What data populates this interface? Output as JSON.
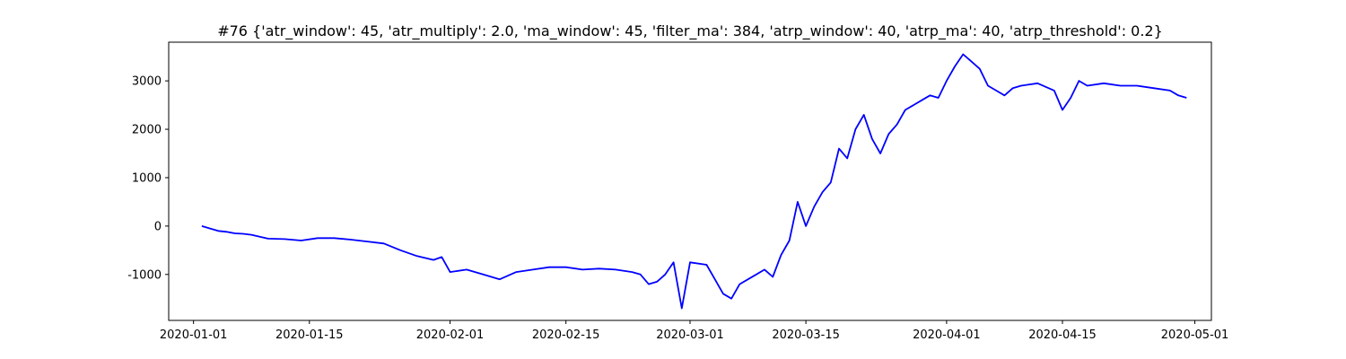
{
  "chart_data": {
    "type": "line",
    "title": "#76 {'atr_window': 45, 'atr_multiply': 2.0, 'ma_window': 45, 'filter_ma': 384, 'atrp_window': 40, 'atrp_ma': 40, 'atrp_threshold': 0.2}",
    "xlabel": "",
    "ylabel": "",
    "x_axis_type": "date",
    "xlim": [
      "2019-12-29",
      "2020-05-03"
    ],
    "ylim": [
      -1950,
      3800
    ],
    "x_ticks": [
      "2020-01-01",
      "2020-01-15",
      "2020-02-01",
      "2020-02-15",
      "2020-03-01",
      "2020-03-15",
      "2020-04-01",
      "2020-04-15",
      "2020-05-01"
    ],
    "y_ticks": [
      -1000,
      0,
      1000,
      2000,
      3000
    ],
    "grid": false,
    "color": "#0000ff",
    "series": [
      {
        "x": [
          "2020-01-02",
          "2020-01-03",
          "2020-01-04",
          "2020-01-05",
          "2020-01-06",
          "2020-01-07",
          "2020-01-08",
          "2020-01-09",
          "2020-01-10",
          "2020-01-12",
          "2020-01-14",
          "2020-01-16",
          "2020-01-18",
          "2020-01-20",
          "2020-01-22",
          "2020-01-24",
          "2020-01-26",
          "2020-01-28",
          "2020-01-30",
          "2020-01-31",
          "2020-02-01",
          "2020-02-03",
          "2020-02-05",
          "2020-02-07",
          "2020-02-09",
          "2020-02-11",
          "2020-02-13",
          "2020-02-15",
          "2020-02-17",
          "2020-02-19",
          "2020-02-21",
          "2020-02-23",
          "2020-02-24",
          "2020-02-25",
          "2020-02-26",
          "2020-02-27",
          "2020-02-28",
          "2020-02-29",
          "2020-03-01",
          "2020-03-03",
          "2020-03-04",
          "2020-03-05",
          "2020-03-06",
          "2020-03-07",
          "2020-03-08",
          "2020-03-09",
          "2020-03-10",
          "2020-03-11",
          "2020-03-12",
          "2020-03-13",
          "2020-03-14",
          "2020-03-15",
          "2020-03-16",
          "2020-03-17",
          "2020-03-18",
          "2020-03-19",
          "2020-03-20",
          "2020-03-21",
          "2020-03-22",
          "2020-03-23",
          "2020-03-24",
          "2020-03-25",
          "2020-03-26",
          "2020-03-27",
          "2020-03-28",
          "2020-03-29",
          "2020-03-30",
          "2020-03-31",
          "2020-04-01",
          "2020-04-02",
          "2020-04-03",
          "2020-04-04",
          "2020-04-05",
          "2020-04-06",
          "2020-04-07",
          "2020-04-08",
          "2020-04-09",
          "2020-04-10",
          "2020-04-12",
          "2020-04-14",
          "2020-04-15",
          "2020-04-16",
          "2020-04-17",
          "2020-04-18",
          "2020-04-20",
          "2020-04-22",
          "2020-04-24",
          "2020-04-26",
          "2020-04-28",
          "2020-04-29",
          "2020-04-30"
        ],
        "y": [
          0,
          -50,
          -100,
          -120,
          -150,
          -160,
          -180,
          -220,
          -260,
          -270,
          -300,
          -250,
          -250,
          -280,
          -320,
          -360,
          -500,
          -620,
          -700,
          -640,
          -950,
          -900,
          -1000,
          -1100,
          -950,
          -900,
          -850,
          -850,
          -900,
          -880,
          -900,
          -950,
          -1000,
          -1200,
          -1150,
          -1000,
          -750,
          -1700,
          -750,
          -800,
          -1100,
          -1400,
          -1500,
          -1200,
          -1100,
          -1000,
          -900,
          -1050,
          -600,
          -300,
          500,
          0,
          400,
          700,
          900,
          1600,
          1400,
          2000,
          2300,
          1800,
          1500,
          1900,
          2100,
          2400,
          2500,
          2600,
          2700,
          2650,
          3000,
          3300,
          3550,
          3400,
          3250,
          2900,
          2800,
          2700,
          2850,
          2900,
          2950,
          2800,
          2400,
          2650,
          3000,
          2900,
          2950,
          2900,
          2900,
          2850,
          2800,
          2700,
          2650
        ]
      }
    ]
  }
}
